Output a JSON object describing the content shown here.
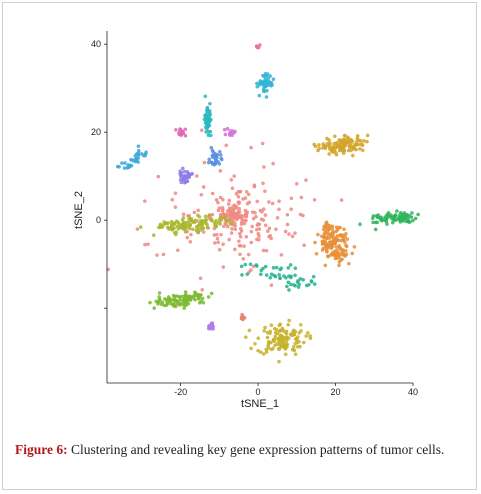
{
  "chart_data": {
    "type": "scatter",
    "xlabel": "tSNE_1",
    "ylabel": "tSNE_2",
    "xlim": [
      -39,
      40
    ],
    "ylim": [
      -37,
      43
    ],
    "x_ticks": [
      -20,
      0,
      20,
      40
    ],
    "x_tick_labels": [
      "-20",
      "0",
      "20",
      "40"
    ],
    "y_ticks": [
      -20,
      0,
      20,
      40
    ],
    "y_tick_labels": [
      "",
      "0",
      "20",
      "40"
    ],
    "grid": false,
    "legend": "none",
    "clusters": [
      {
        "color": "#f08a84",
        "shape": "star",
        "center": [
          -6,
          1
        ],
        "spread": [
          8,
          5
        ],
        "n": 260
      },
      {
        "color": "#e8913a",
        "shape": "band",
        "center": [
          18,
          -2
        ],
        "end": [
          21,
          -8
        ],
        "spread": [
          5,
          4
        ],
        "n": 150
      },
      {
        "color": "#d4a52a",
        "shape": "band",
        "center": [
          18,
          16
        ],
        "end": [
          24,
          18
        ],
        "spread": [
          6,
          3
        ],
        "n": 110
      },
      {
        "color": "#c6b32c",
        "shape": "blob",
        "center": [
          6,
          -27
        ],
        "spread": [
          7,
          4
        ],
        "n": 120
      },
      {
        "color": "#a8b82c",
        "shape": "band",
        "center": [
          -24,
          -2
        ],
        "end": [
          -12,
          0
        ],
        "spread": [
          9,
          2.2
        ],
        "n": 110
      },
      {
        "color": "#7cba30",
        "shape": "band",
        "center": [
          -24,
          -19
        ],
        "end": [
          -15,
          -17
        ],
        "spread": [
          8,
          2
        ],
        "n": 100
      },
      {
        "color": "#2fb55c",
        "shape": "band",
        "center": [
          32,
          0
        ],
        "end": [
          38,
          1
        ],
        "spread": [
          6,
          1.6
        ],
        "n": 80
      },
      {
        "color": "#27b38f",
        "shape": "band",
        "center": [
          0,
          -10
        ],
        "end": [
          12,
          -15
        ],
        "spread": [
          10,
          1.2
        ],
        "n": 50
      },
      {
        "color": "#2db8c2",
        "shape": "band",
        "center": [
          -13,
          25
        ],
        "end": [
          -13,
          22
        ],
        "spread": [
          1.4,
          4
        ],
        "n": 45
      },
      {
        "color": "#33b5d4",
        "shape": "blob",
        "center": [
          2,
          31
        ],
        "spread": [
          2,
          2.5
        ],
        "n": 50
      },
      {
        "color": "#3fa8dc",
        "shape": "band",
        "center": [
          -34,
          12
        ],
        "end": [
          -30,
          15
        ],
        "spread": [
          4,
          2
        ],
        "n": 35
      },
      {
        "color": "#5a8fe0",
        "shape": "blob",
        "center": [
          -11,
          14
        ],
        "spread": [
          1.6,
          2.2
        ],
        "n": 30
      },
      {
        "color": "#8c7ee8",
        "shape": "blob",
        "center": [
          -19,
          10
        ],
        "spread": [
          2,
          1.5
        ],
        "n": 30
      },
      {
        "color": "#b07ae8",
        "shape": "blob",
        "center": [
          -12,
          -24
        ],
        "spread": [
          1.2,
          1
        ],
        "n": 12
      },
      {
        "color": "#d272d8",
        "shape": "blob",
        "center": [
          -7,
          20
        ],
        "spread": [
          1.2,
          1
        ],
        "n": 12
      },
      {
        "color": "#e06ab8",
        "shape": "blob",
        "center": [
          -20,
          20
        ],
        "spread": [
          1.5,
          1
        ],
        "n": 15
      },
      {
        "color": "#e876a0",
        "shape": "blob",
        "center": [
          0,
          39.5
        ],
        "spread": [
          0.5,
          0.6
        ],
        "n": 10
      },
      {
        "color": "#e8826e",
        "shape": "blob",
        "center": [
          -4,
          -22
        ],
        "spread": [
          0.8,
          0.8
        ],
        "n": 8
      }
    ]
  },
  "caption": {
    "label": "Figure 6:",
    "text": " Clustering and revealing key gene expression patterns of tumor cells."
  }
}
